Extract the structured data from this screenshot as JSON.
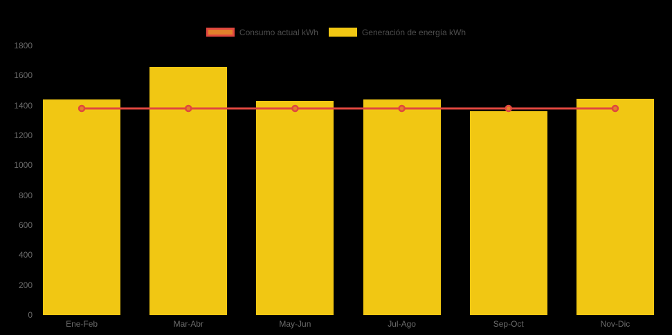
{
  "chart_data": {
    "type": "bar",
    "title": "",
    "xlabel": "",
    "ylabel": "",
    "background": "#000000",
    "categories": [
      "Ene-Feb",
      "Mar-Abr",
      "May-Jun",
      "Jul-Ago",
      "Sep-Oct",
      "Nov-Dic"
    ],
    "series": [
      {
        "name": "Consumo actual kWh",
        "type": "line",
        "values": [
          1380,
          1380,
          1380,
          1380,
          1380,
          1380
        ],
        "color": "#e0473f",
        "marker_fill": "#e2802b",
        "legend_fill": "#e2802b",
        "legend_border": "#e0473f"
      },
      {
        "name": "Generación de energía kWh",
        "type": "bar",
        "values": [
          1440,
          1655,
          1430,
          1440,
          1360,
          1445
        ],
        "color": "#f1c713",
        "legend_fill": "#f1c713",
        "legend_border": ""
      }
    ],
    "ylim": [
      0,
      1800
    ],
    "ytick_step": 200,
    "yticks": [
      "0",
      "200",
      "400",
      "600",
      "800",
      "1000",
      "1200",
      "1400",
      "1600",
      "1800"
    ],
    "grid": false,
    "legend_position": "top",
    "tick_color": "#6b6b6b",
    "legend_text_color": "#4d4d4d"
  }
}
